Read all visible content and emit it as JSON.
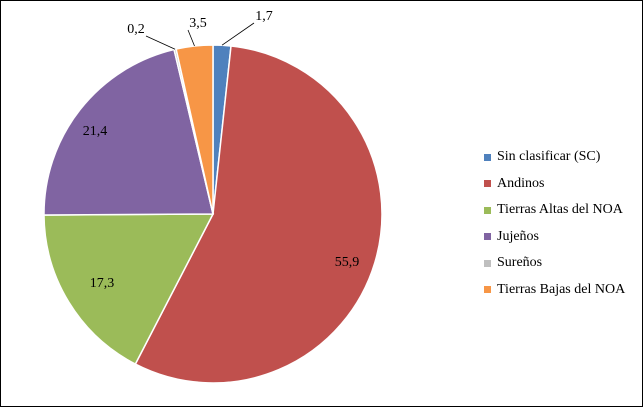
{
  "chart_data": {
    "type": "pie",
    "start_angle_deg": 90,
    "direction": "clockwise",
    "legend_position": "right",
    "slices": [
      {
        "label": "Sin clasificar (SC)",
        "value": 1.7,
        "value_label": "1,7",
        "color": "#4F81BD"
      },
      {
        "label": "Andinos",
        "value": 55.9,
        "value_label": "55,9",
        "color": "#C0504D"
      },
      {
        "label": "Tierras Altas del NOA",
        "value": 17.3,
        "value_label": "17,3",
        "color": "#9BBB59"
      },
      {
        "label": "Jujeños",
        "value": 21.4,
        "value_label": "21,4",
        "color": "#8064A2"
      },
      {
        "label": "Sureños",
        "value": 0.2,
        "value_label": "0,2",
        "color": "#BFBFBF"
      },
      {
        "label": "Tierras Bajas del NOA",
        "value": 3.5,
        "value_label": "3,5",
        "color": "#F79646"
      }
    ]
  }
}
